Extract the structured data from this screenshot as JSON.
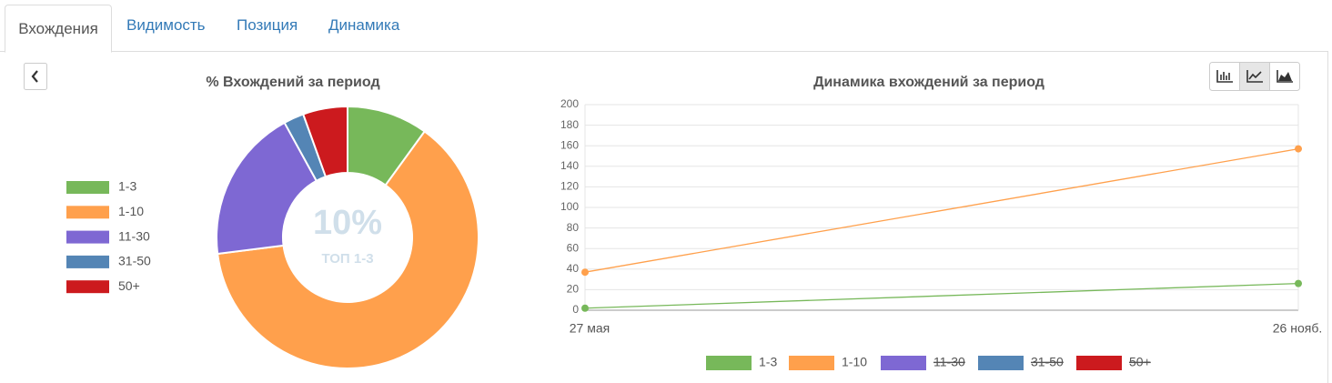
{
  "tabs": [
    "Вхождения",
    "Видимость",
    "Позиция",
    "Динамика"
  ],
  "chart_data": [
    {
      "type": "pie",
      "title": "% Вхождений за период",
      "donut": true,
      "center_label": "10%",
      "center_sublabel": "ТОП 1-3",
      "categories": [
        "1-3",
        "1-10",
        "11-30",
        "31-50",
        "50+"
      ],
      "values": [
        10,
        63,
        19,
        2.5,
        5.5
      ],
      "colors": [
        "#77b85a",
        "#ffa04c",
        "#7e68d3",
        "#5485b5",
        "#cc1a1e"
      ],
      "legend": "left"
    },
    {
      "type": "line",
      "title": "Динамика вхождений за период",
      "x": [
        "27 мая",
        "26 нояб."
      ],
      "series": [
        {
          "name": "1-3",
          "color": "#77b85a",
          "values": [
            2,
            26
          ]
        },
        {
          "name": "1-10",
          "color": "#ffa04c",
          "values": [
            37,
            157
          ]
        },
        {
          "name": "11-30",
          "color": "#7e68d3",
          "values": [
            null,
            null
          ],
          "hidden": true
        },
        {
          "name": "31-50",
          "color": "#5485b5",
          "values": [
            null,
            null
          ],
          "hidden": true
        },
        {
          "name": "50+",
          "color": "#cc1a1e",
          "values": [
            null,
            null
          ],
          "hidden": true
        }
      ],
      "ylim": [
        0,
        200
      ],
      "yticks": [
        0,
        20,
        40,
        60,
        80,
        100,
        120,
        140,
        160,
        180,
        200
      ],
      "grid": true,
      "legend": "bottom"
    }
  ]
}
